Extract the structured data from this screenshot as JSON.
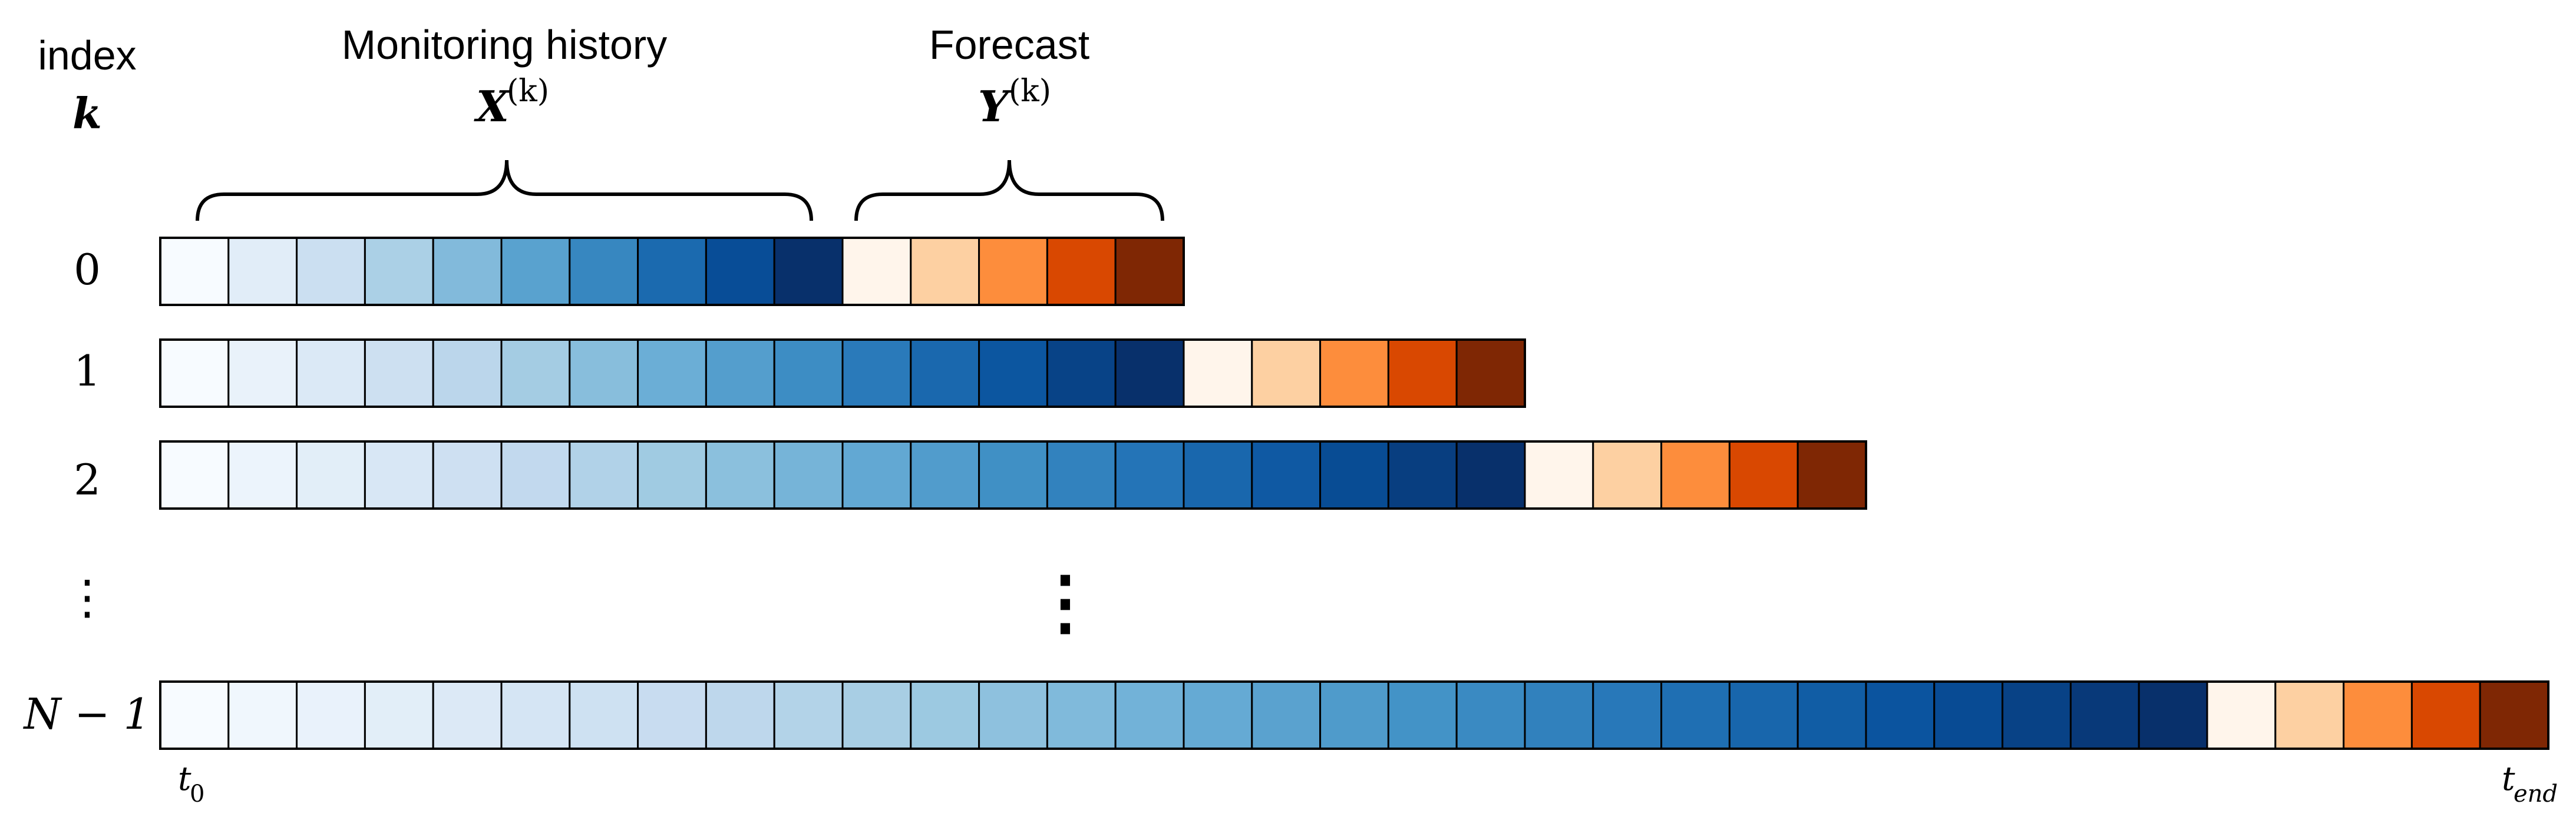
{
  "header": {
    "index_label": "index",
    "index_symbol": "k"
  },
  "history_group": {
    "title": "Monitoring history",
    "symbol": "X",
    "superscript": "(k)"
  },
  "forecast_group": {
    "title": "Forecast",
    "symbol": "Y",
    "superscript": "(k)"
  },
  "rows": [
    {
      "label": "0",
      "history_cells": 10,
      "forecast_cells": 5
    },
    {
      "label": "1",
      "history_cells": 15,
      "forecast_cells": 5
    },
    {
      "label": "2",
      "history_cells": 20,
      "forecast_cells": 5
    },
    {
      "label": "N − 1",
      "history_cells": 30,
      "forecast_cells": 5
    }
  ],
  "ellipsis_label": "⋮",
  "axis": {
    "start_symbol": "t",
    "start_subscript": "0",
    "end_symbol": "t",
    "end_subscript": "end"
  },
  "colors": {
    "history_light": "#f7fbff",
    "history_dark": "#08306b",
    "forecast": [
      "#fff5eb",
      "#fdd0a2",
      "#fd8d3c",
      "#d94801",
      "#7f2704"
    ],
    "cell_border": "#000000"
  }
}
